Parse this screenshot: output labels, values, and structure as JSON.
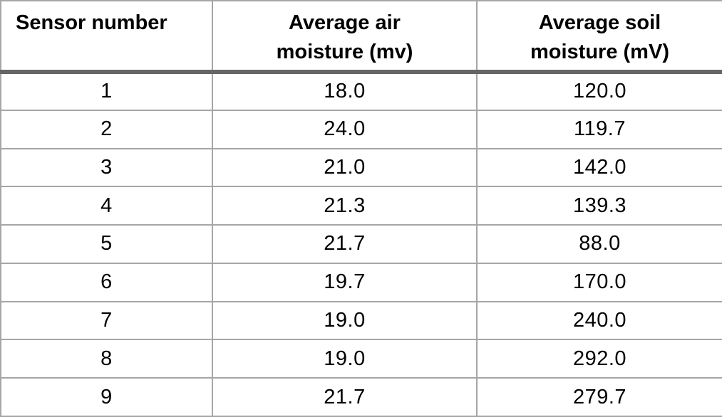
{
  "chart_data": {
    "type": "table",
    "title": "",
    "columns": [
      "Sensor number",
      "Average air moisture (mv)",
      "Average soil moisture (mV)"
    ],
    "column_header_lines": [
      [
        "Sensor number"
      ],
      [
        "Average air",
        "moisture (mv)"
      ],
      [
        "Average soil",
        "moisture (mV)"
      ]
    ],
    "rows": [
      [
        "1",
        "18.0",
        "120.0"
      ],
      [
        "2",
        "24.0",
        "119.7"
      ],
      [
        "3",
        "21.0",
        "142.0"
      ],
      [
        "4",
        "21.3",
        "139.3"
      ],
      [
        "5",
        "21.7",
        "88.0"
      ],
      [
        "6",
        "19.7",
        "170.0"
      ],
      [
        "7",
        "19.0",
        "240.0"
      ],
      [
        "8",
        "19.0",
        "292.0"
      ],
      [
        "9",
        "21.7",
        "279.7"
      ]
    ],
    "sensor_numbers": [
      1,
      2,
      3,
      4,
      5,
      6,
      7,
      8,
      9
    ],
    "avg_air_moisture_mv": [
      18.0,
      24.0,
      21.0,
      21.3,
      21.7,
      19.7,
      19.0,
      19.0,
      21.7
    ],
    "avg_soil_moisture_mV": [
      120.0,
      119.7,
      142.0,
      139.3,
      88.0,
      170.0,
      240.0,
      292.0,
      279.7
    ],
    "layout": {
      "grid": true,
      "header_bold": true,
      "thin_border_color": "#a6a6a6",
      "thick_header_rule_color": "#666666",
      "text_color": "#000000",
      "background_color": "#ffffff"
    }
  }
}
